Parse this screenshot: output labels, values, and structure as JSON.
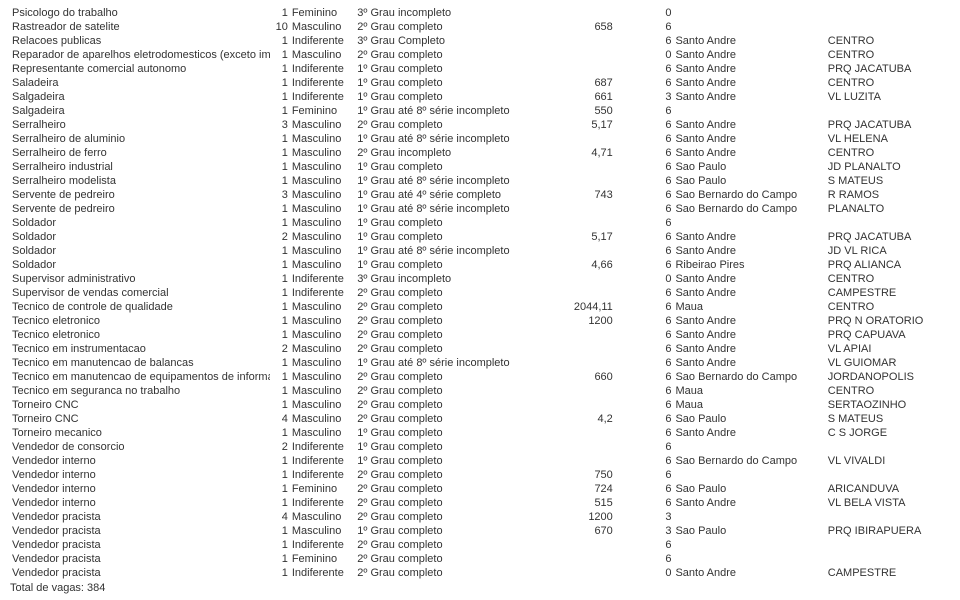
{
  "rows": [
    {
      "cargo": "Psicologo do trabalho",
      "qtd": "1",
      "sexo": "Feminino",
      "esc": "3º Grau incompleto",
      "sal": "",
      "vag": "0",
      "cid": "",
      "bai": ""
    },
    {
      "cargo": "Rastreador de satelite",
      "qtd": "10",
      "sexo": "Masculino",
      "esc": "2º Grau completo",
      "sal": "658",
      "vag": "6",
      "cid": "",
      "bai": ""
    },
    {
      "cargo": "Relacoes publicas",
      "qtd": "1",
      "sexo": "Indiferente",
      "esc": "3º Grau Completo",
      "sal": "",
      "vag": "6",
      "cid": "Santo Andre",
      "bai": "CENTRO"
    },
    {
      "cargo": "Reparador de aparelhos eletrodomesticos (exceto imagem e som)",
      "qtd": "1",
      "sexo": "Masculino",
      "esc": "2º Grau completo",
      "sal": "",
      "vag": "0",
      "cid": "Santo Andre",
      "bai": "CENTRO"
    },
    {
      "cargo": "Representante comercial autonomo",
      "qtd": "1",
      "sexo": "Indiferente",
      "esc": "1º Grau completo",
      "sal": "",
      "vag": "6",
      "cid": "Santo Andre",
      "bai": "PRQ JACATUBA"
    },
    {
      "cargo": "Saladeira",
      "qtd": "1",
      "sexo": "Indiferente",
      "esc": "1º Grau completo",
      "sal": "687",
      "vag": "6",
      "cid": "Santo Andre",
      "bai": "CENTRO"
    },
    {
      "cargo": "Salgadeira",
      "qtd": "1",
      "sexo": "Indiferente",
      "esc": "1º Grau completo",
      "sal": "661",
      "vag": "3",
      "cid": "Santo Andre",
      "bai": "VL LUZITA"
    },
    {
      "cargo": "Salgadeira",
      "qtd": "1",
      "sexo": "Feminino",
      "esc": "1º Grau até 8º série incompleto",
      "sal": "550",
      "vag": "6",
      "cid": "",
      "bai": ""
    },
    {
      "cargo": "Serralheiro",
      "qtd": "3",
      "sexo": "Masculino",
      "esc": "2º Grau completo",
      "sal": "5,17",
      "vag": "6",
      "cid": "Santo Andre",
      "bai": "PRQ JACATUBA"
    },
    {
      "cargo": "Serralheiro de aluminio",
      "qtd": "1",
      "sexo": "Masculino",
      "esc": "1º Grau até 8º série incompleto",
      "sal": "",
      "vag": "6",
      "cid": "Santo Andre",
      "bai": "VL HELENA"
    },
    {
      "cargo": "Serralheiro de ferro",
      "qtd": "1",
      "sexo": "Masculino",
      "esc": "2º Grau incompleto",
      "sal": "4,71",
      "vag": "6",
      "cid": "Santo Andre",
      "bai": "CENTRO"
    },
    {
      "cargo": "Serralheiro industrial",
      "qtd": "1",
      "sexo": "Masculino",
      "esc": "1º Grau completo",
      "sal": "",
      "vag": "6",
      "cid": "Sao Paulo",
      "bai": "JD PLANALTO"
    },
    {
      "cargo": "Serralheiro modelista",
      "qtd": "1",
      "sexo": "Masculino",
      "esc": "1º Grau até 8º série incompleto",
      "sal": "",
      "vag": "6",
      "cid": "Sao Paulo",
      "bai": "S MATEUS"
    },
    {
      "cargo": "Servente de pedreiro",
      "qtd": "3",
      "sexo": "Masculino",
      "esc": "1º Grau até 4º série completo",
      "sal": "743",
      "vag": "6",
      "cid": "Sao Bernardo do Campo",
      "bai": "R RAMOS"
    },
    {
      "cargo": "Servente de pedreiro",
      "qtd": "1",
      "sexo": "Masculino",
      "esc": "1º Grau até 8º série incompleto",
      "sal": "",
      "vag": "6",
      "cid": "Sao Bernardo do Campo",
      "bai": "PLANALTO"
    },
    {
      "cargo": "Soldador",
      "qtd": "1",
      "sexo": "Masculino",
      "esc": "1º Grau completo",
      "sal": "",
      "vag": "6",
      "cid": "",
      "bai": ""
    },
    {
      "cargo": "Soldador",
      "qtd": "2",
      "sexo": "Masculino",
      "esc": "1º Grau completo",
      "sal": "5,17",
      "vag": "6",
      "cid": "Santo Andre",
      "bai": "PRQ JACATUBA"
    },
    {
      "cargo": "Soldador",
      "qtd": "1",
      "sexo": "Masculino",
      "esc": "1º Grau até 8º série incompleto",
      "sal": "",
      "vag": "6",
      "cid": "Santo Andre",
      "bai": "JD VL RICA"
    },
    {
      "cargo": "Soldador",
      "qtd": "1",
      "sexo": "Masculino",
      "esc": "1º Grau completo",
      "sal": "4,66",
      "vag": "6",
      "cid": "Ribeirao Pires",
      "bai": "PRQ ALIANCA"
    },
    {
      "cargo": "Supervisor administrativo",
      "qtd": "1",
      "sexo": "Indiferente",
      "esc": "3º Grau incompleto",
      "sal": "",
      "vag": "0",
      "cid": "Santo Andre",
      "bai": "CENTRO"
    },
    {
      "cargo": "Supervisor de vendas comercial",
      "qtd": "1",
      "sexo": "Indiferente",
      "esc": "2º Grau completo",
      "sal": "",
      "vag": "6",
      "cid": "Santo Andre",
      "bai": "CAMPESTRE"
    },
    {
      "cargo": "Tecnico de controle de qualidade",
      "qtd": "1",
      "sexo": "Masculino",
      "esc": "2º Grau completo",
      "sal": "2044,11",
      "vag": "6",
      "cid": "Maua",
      "bai": "CENTRO"
    },
    {
      "cargo": "Tecnico eletronico",
      "qtd": "1",
      "sexo": "Masculino",
      "esc": "2º Grau completo",
      "sal": "1200",
      "vag": "6",
      "cid": "Santo Andre",
      "bai": "PRQ N ORATORIO"
    },
    {
      "cargo": "Tecnico eletronico",
      "qtd": "1",
      "sexo": "Masculino",
      "esc": "2º Grau completo",
      "sal": "",
      "vag": "6",
      "cid": "Santo Andre",
      "bai": "PRQ CAPUAVA"
    },
    {
      "cargo": "Tecnico em instrumentacao",
      "qtd": "2",
      "sexo": "Masculino",
      "esc": "2º Grau completo",
      "sal": "",
      "vag": "6",
      "cid": "Santo Andre",
      "bai": "VL APIAI"
    },
    {
      "cargo": "Tecnico em manutencao de balancas",
      "qtd": "1",
      "sexo": "Masculino",
      "esc": "1º Grau até 8º série incompleto",
      "sal": "",
      "vag": "6",
      "cid": "Santo Andre",
      "bai": "VL GUIOMAR"
    },
    {
      "cargo": "Tecnico em manutencao de equipamentos de informatica",
      "qtd": "1",
      "sexo": "Masculino",
      "esc": "2º Grau completo",
      "sal": "660",
      "vag": "6",
      "cid": "Sao Bernardo do Campo",
      "bai": "JORDANOPOLIS"
    },
    {
      "cargo": "Tecnico em seguranca no trabalho",
      "qtd": "1",
      "sexo": "Masculino",
      "esc": "2º Grau completo",
      "sal": "",
      "vag": "6",
      "cid": "Maua",
      "bai": "CENTRO"
    },
    {
      "cargo": "Torneiro CNC",
      "qtd": "1",
      "sexo": "Masculino",
      "esc": "2º Grau completo",
      "sal": "",
      "vag": "6",
      "cid": "Maua",
      "bai": "SERTAOZINHO"
    },
    {
      "cargo": "Torneiro CNC",
      "qtd": "4",
      "sexo": "Masculino",
      "esc": "2º Grau completo",
      "sal": "4,2",
      "vag": "6",
      "cid": "Sao Paulo",
      "bai": "S MATEUS"
    },
    {
      "cargo": "Torneiro mecanico",
      "qtd": "1",
      "sexo": "Masculino",
      "esc": "1º Grau completo",
      "sal": "",
      "vag": "6",
      "cid": "Santo Andre",
      "bai": "C S JORGE"
    },
    {
      "cargo": "Vendedor de consorcio",
      "qtd": "2",
      "sexo": "Indiferente",
      "esc": "1º Grau completo",
      "sal": "",
      "vag": "6",
      "cid": "",
      "bai": ""
    },
    {
      "cargo": "Vendedor interno",
      "qtd": "1",
      "sexo": "Indiferente",
      "esc": "1º Grau completo",
      "sal": "",
      "vag": "6",
      "cid": "Sao Bernardo do Campo",
      "bai": "VL VIVALDI"
    },
    {
      "cargo": "Vendedor interno",
      "qtd": "1",
      "sexo": "Indiferente",
      "esc": "2º Grau completo",
      "sal": "750",
      "vag": "6",
      "cid": "",
      "bai": ""
    },
    {
      "cargo": "Vendedor interno",
      "qtd": "1",
      "sexo": "Feminino",
      "esc": "2º Grau completo",
      "sal": "724",
      "vag": "6",
      "cid": "Sao Paulo",
      "bai": "ARICANDUVA"
    },
    {
      "cargo": "Vendedor interno",
      "qtd": "1",
      "sexo": "Indiferente",
      "esc": "2º Grau completo",
      "sal": "515",
      "vag": "6",
      "cid": "Santo Andre",
      "bai": "VL BELA VISTA"
    },
    {
      "cargo": "Vendedor pracista",
      "qtd": "4",
      "sexo": "Masculino",
      "esc": "2º Grau completo",
      "sal": "1200",
      "vag": "3",
      "cid": "",
      "bai": ""
    },
    {
      "cargo": "Vendedor pracista",
      "qtd": "1",
      "sexo": "Masculino",
      "esc": "1º Grau completo",
      "sal": "670",
      "vag": "3",
      "cid": "Sao Paulo",
      "bai": "PRQ IBIRAPUERA"
    },
    {
      "cargo": "Vendedor pracista",
      "qtd": "1",
      "sexo": "Indiferente",
      "esc": "2º Grau completo",
      "sal": "",
      "vag": "6",
      "cid": "",
      "bai": ""
    },
    {
      "cargo": "Vendedor pracista",
      "qtd": "1",
      "sexo": "Feminino",
      "esc": "2º Grau completo",
      "sal": "",
      "vag": "6",
      "cid": "",
      "bai": ""
    },
    {
      "cargo": "Vendedor pracista",
      "qtd": "1",
      "sexo": "Indiferente",
      "esc": "2º Grau completo",
      "sal": "",
      "vag": "0",
      "cid": "Santo Andre",
      "bai": "CAMPESTRE"
    }
  ],
  "total_label": "Total de vagas: 384"
}
